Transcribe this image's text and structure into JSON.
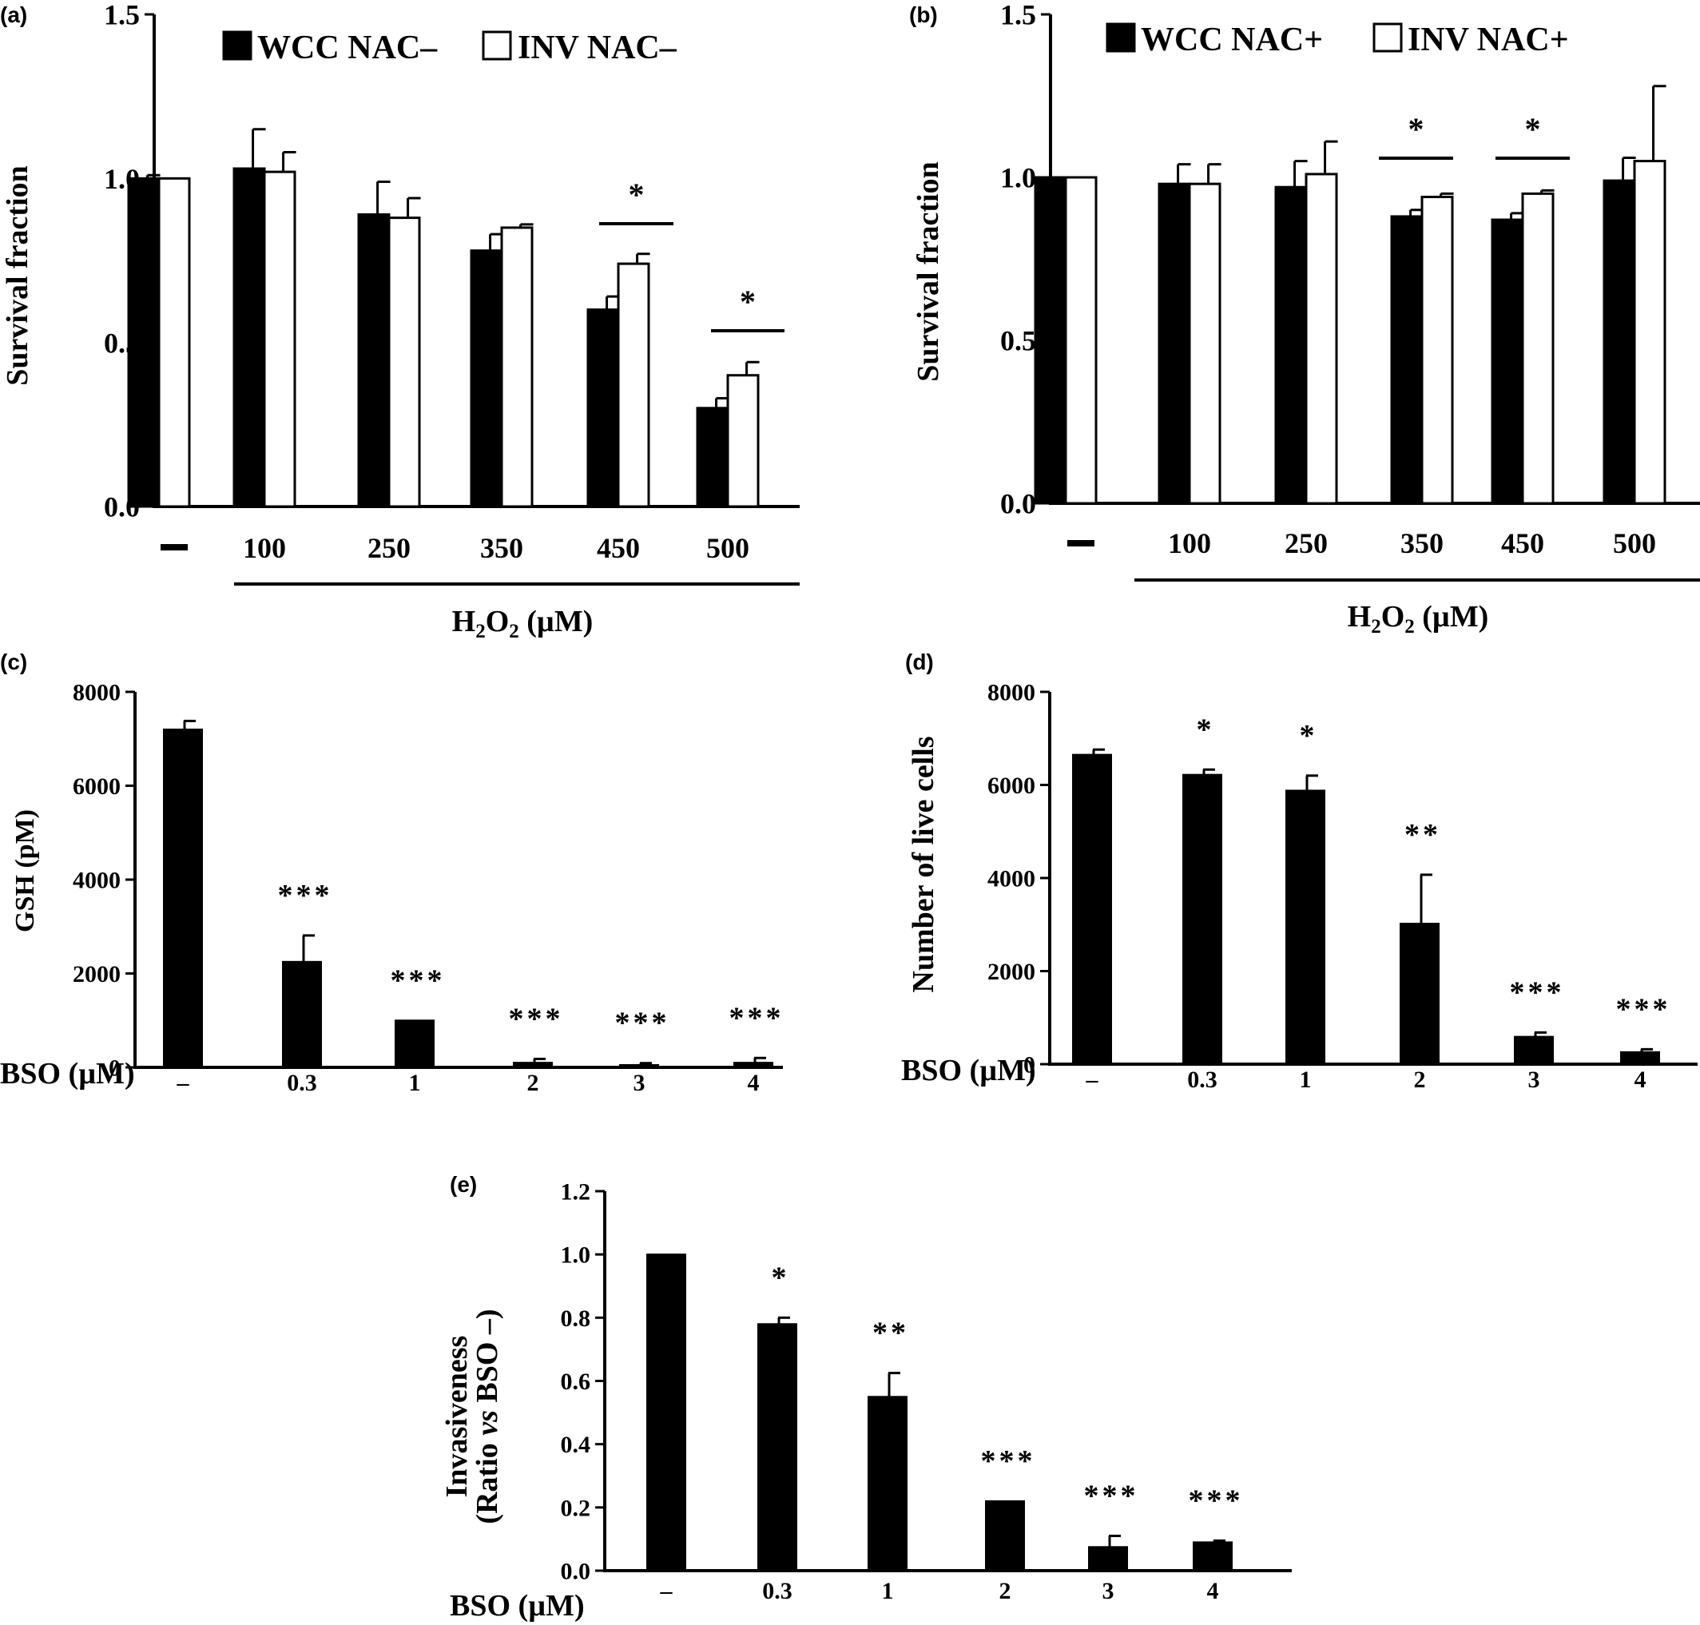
{
  "chart_data": [
    {
      "panel": "(a)",
      "type": "bar",
      "categories": [
        "–",
        "100",
        "250",
        "350",
        "450",
        "500"
      ],
      "series": [
        {
          "name": "WCC NAC–",
          "values": [
            1.0,
            1.03,
            0.89,
            0.78,
            0.6,
            0.3
          ],
          "errors": [
            0.01,
            0.12,
            0.1,
            0.05,
            0.04,
            0.03
          ],
          "fill": "#000000"
        },
        {
          "name": "INV NAC–",
          "values": [
            1.0,
            1.02,
            0.88,
            0.85,
            0.74,
            0.4
          ],
          "errors": [
            0.0,
            0.06,
            0.06,
            0.01,
            0.03,
            0.04
          ],
          "fill": "#ffffff"
        }
      ],
      "ylabel": "Survival fraction",
      "xlabel": "H2O2 (µM)",
      "xlabel_parts": {
        "a": "H",
        "sub1": "2",
        "b": "O",
        "sub2": "2",
        "c": " (µM)"
      },
      "ylim": [
        0,
        1.5
      ],
      "yticks": [
        "0.0",
        "0.5",
        "1.0",
        "1.5"
      ],
      "significance": [
        {
          "category": 4,
          "label": "*"
        },
        {
          "category": 5,
          "label": "*"
        }
      ],
      "legend_position": "top"
    },
    {
      "panel": "(b)",
      "type": "bar",
      "categories": [
        "–",
        "100",
        "250",
        "350",
        "450",
        "500"
      ],
      "series": [
        {
          "name": "WCC NAC+",
          "values": [
            1.0,
            0.98,
            0.97,
            0.88,
            0.87,
            0.99
          ],
          "errors": [
            0.0,
            0.06,
            0.08,
            0.02,
            0.02,
            0.07
          ],
          "fill": "#000000"
        },
        {
          "name": "INV NAC+",
          "values": [
            1.0,
            0.98,
            1.01,
            0.94,
            0.95,
            1.05
          ],
          "errors": [
            0.0,
            0.06,
            0.1,
            0.01,
            0.01,
            0.23
          ],
          "fill": "#ffffff"
        }
      ],
      "ylabel": "Survival fraction",
      "xlabel": "H2O2 (µM)",
      "xlabel_parts": {
        "a": "H",
        "sub1": "2",
        "b": "O",
        "sub2": "2",
        "c": " (µM)"
      },
      "ylim": [
        0,
        1.5
      ],
      "yticks": [
        "0.0",
        "0.5",
        "1.0",
        "1.5"
      ],
      "significance": [
        {
          "category": 3,
          "label": "*"
        },
        {
          "category": 4,
          "label": "*"
        }
      ],
      "legend_position": "top"
    },
    {
      "panel": "(c)",
      "type": "bar",
      "x_prefix": "BSO (µM)",
      "categories": [
        "–",
        "0.3",
        "1",
        "2",
        "3",
        "4"
      ],
      "values": [
        7200,
        2250,
        1000,
        100,
        50,
        100
      ],
      "errors": [
        180,
        560,
        0,
        80,
        40,
        100
      ],
      "annotations": [
        "",
        "***",
        "***",
        "***",
        "***",
        "***"
      ],
      "ylabel": "GSH (pM)",
      "ylim": [
        0,
        8000
      ],
      "yticks": [
        "0",
        "2000",
        "4000",
        "6000",
        "8000"
      ]
    },
    {
      "panel": "(d)",
      "type": "bar",
      "x_prefix": "BSO (µM)",
      "categories": [
        "–",
        "0.3",
        "1",
        "2",
        "3",
        "4"
      ],
      "values": [
        6650,
        6220,
        5880,
        3020,
        590,
        260
      ],
      "errors": [
        110,
        110,
        320,
        1050,
        90,
        60
      ],
      "annotations": [
        "",
        "*",
        "*",
        "**",
        "***",
        "***"
      ],
      "ylabel": "Number of live cells",
      "ylim": [
        0,
        8000
      ],
      "yticks": [
        "0",
        "2000",
        "4000",
        "6000",
        "8000"
      ]
    },
    {
      "panel": "(e)",
      "type": "bar",
      "x_prefix": "BSO (µM)",
      "categories": [
        "–",
        "0.3",
        "1",
        "2",
        "3",
        "4"
      ],
      "values": [
        1.0,
        0.78,
        0.55,
        0.22,
        0.075,
        0.09
      ],
      "errors": [
        0.0,
        0.02,
        0.075,
        0.0,
        0.035,
        0.005
      ],
      "annotations": [
        "",
        "*",
        "**",
        "***",
        "***",
        "***"
      ],
      "ylabel_line1": "Invasiveness",
      "ylabel_line2": {
        "a": "(Ratio ",
        "vs": "vs",
        "b": " BSO –)"
      },
      "ylim": [
        0,
        1.2
      ],
      "yticks": [
        "0.0",
        "0.2",
        "0.4",
        "0.6",
        "0.8",
        "1.0",
        "1.2"
      ]
    }
  ]
}
